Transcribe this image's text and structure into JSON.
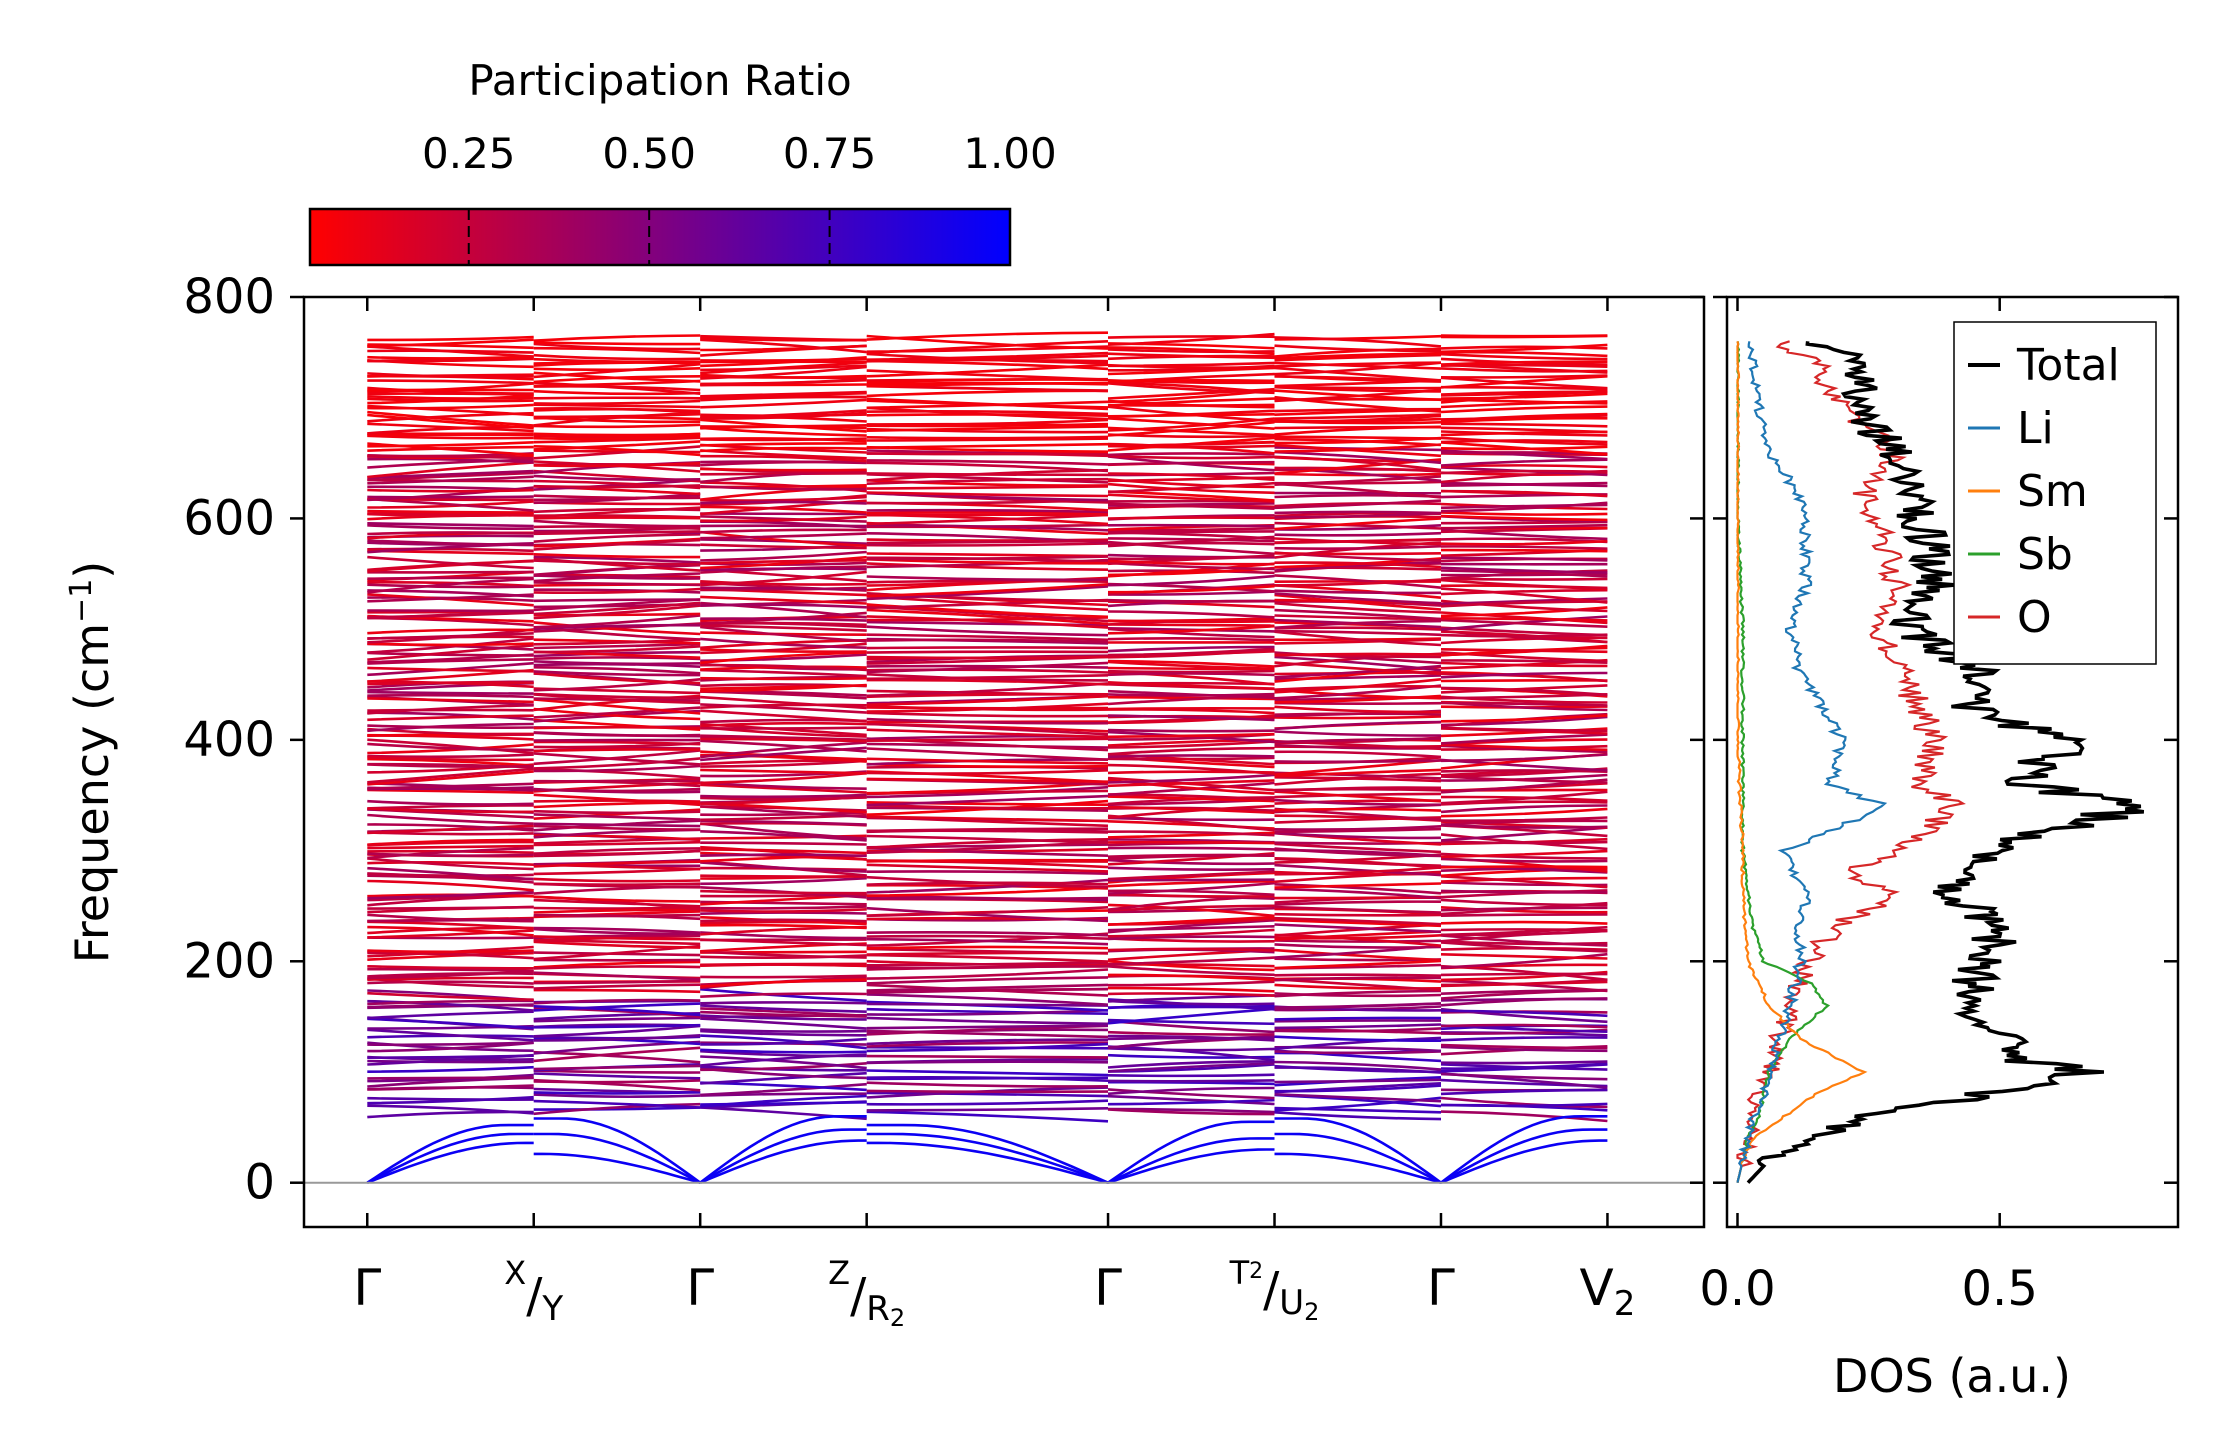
{
  "chart_data": [
    {
      "type": "line",
      "title": "",
      "xlabel": "",
      "ylabel": "Frequency (cm",
      "ylabel_unit_sup": "−1",
      "ylabel_close": ")",
      "ylim": [
        -40,
        800
      ],
      "yticks": [
        0,
        200,
        400,
        600,
        800
      ],
      "kpath": [
        {
          "label": "Γ",
          "pos": 0.0
        },
        {
          "label_top": "X",
          "label_bottom": "Y",
          "pos": 1.0
        },
        {
          "label": "Γ",
          "pos": 2.0
        },
        {
          "label_top": "Z",
          "label_bottom": "R",
          "sub": "2",
          "pos": 3.0
        },
        {
          "label": "Γ",
          "pos": 4.45
        },
        {
          "label_top": "T",
          "sup_top": "2",
          "label_bottom": "U",
          "sub": "2",
          "pos": 5.45
        },
        {
          "label": "Γ",
          "pos": 6.45
        },
        {
          "label": "V",
          "sub": "2",
          "pos": 7.45
        }
      ],
      "colorbar": {
        "title": "Participation Ratio",
        "ticks": [
          0.25,
          0.5,
          0.75,
          1.0
        ],
        "tick_labels": [
          "0.25",
          "0.50",
          "0.75",
          "1.00"
        ],
        "range": [
          0.03,
          1.0
        ],
        "color_low": "#ff0000",
        "color_high": "#0000ff"
      },
      "band_range": {
        "optical_min": 62,
        "optical_max": 762,
        "acoustic_max": 72
      }
    },
    {
      "type": "line",
      "xlabel": "DOS (a.u.)",
      "ylabel": "",
      "xlim": [
        -0.02,
        0.84
      ],
      "xticks": [
        0.0,
        0.5
      ],
      "xtick_labels": [
        "0.0",
        "0.5"
      ],
      "series": [
        {
          "name": "Total",
          "color": "#000000",
          "y": [
            0,
            20,
            40,
            60,
            80,
            100,
            110,
            130,
            160,
            200,
            230,
            260,
            300,
            340,
            360,
            400,
            430,
            460,
            500,
            540,
            580,
            620,
            660,
            700,
            740,
            760
          ],
          "values": [
            0.02,
            0.06,
            0.13,
            0.25,
            0.48,
            0.68,
            0.55,
            0.52,
            0.43,
            0.47,
            0.5,
            0.41,
            0.47,
            0.76,
            0.55,
            0.62,
            0.44,
            0.48,
            0.32,
            0.38,
            0.36,
            0.33,
            0.3,
            0.22,
            0.25,
            0.12
          ]
        },
        {
          "name": "Li",
          "color": "#1f77b4",
          "y": [
            0,
            20,
            40,
            60,
            80,
            100,
            130,
            160,
            200,
            230,
            260,
            300,
            340,
            360,
            400,
            430,
            460,
            500,
            540,
            580,
            620,
            660,
            700,
            740,
            760
          ],
          "values": [
            0.0,
            0.01,
            0.02,
            0.03,
            0.05,
            0.06,
            0.08,
            0.1,
            0.12,
            0.12,
            0.13,
            0.09,
            0.28,
            0.18,
            0.2,
            0.16,
            0.12,
            0.1,
            0.13,
            0.13,
            0.12,
            0.06,
            0.04,
            0.03,
            0.02
          ]
        },
        {
          "name": "Sm",
          "color": "#ff7f0e",
          "y": [
            0,
            20,
            40,
            60,
            80,
            100,
            110,
            130,
            160,
            200,
            260,
            300,
            400,
            500,
            600,
            700,
            760
          ],
          "values": [
            0.0,
            0.01,
            0.03,
            0.09,
            0.15,
            0.24,
            0.2,
            0.12,
            0.06,
            0.02,
            0.01,
            0.01,
            0.0,
            0.0,
            0.0,
            0.0,
            0.0
          ]
        },
        {
          "name": "Sb",
          "color": "#2ca02c",
          "y": [
            0,
            20,
            40,
            60,
            80,
            100,
            130,
            160,
            180,
            200,
            230,
            260,
            300,
            400,
            500,
            600,
            700,
            760
          ],
          "values": [
            0.0,
            0.01,
            0.02,
            0.04,
            0.05,
            0.06,
            0.1,
            0.17,
            0.14,
            0.05,
            0.03,
            0.02,
            0.01,
            0.01,
            0.01,
            0.0,
            0.0,
            0.0
          ]
        },
        {
          "name": "O",
          "color": "#d62728",
          "y": [
            0,
            20,
            40,
            60,
            80,
            100,
            130,
            160,
            200,
            230,
            260,
            280,
            300,
            340,
            360,
            400,
            430,
            460,
            500,
            540,
            580,
            620,
            660,
            700,
            740,
            760
          ],
          "values": [
            0.0,
            0.01,
            0.02,
            0.03,
            0.04,
            0.06,
            0.08,
            0.1,
            0.14,
            0.18,
            0.3,
            0.2,
            0.32,
            0.42,
            0.35,
            0.38,
            0.34,
            0.32,
            0.26,
            0.3,
            0.28,
            0.24,
            0.3,
            0.2,
            0.15,
            0.08
          ]
        }
      ],
      "legend": {
        "position": "top-right"
      }
    }
  ]
}
